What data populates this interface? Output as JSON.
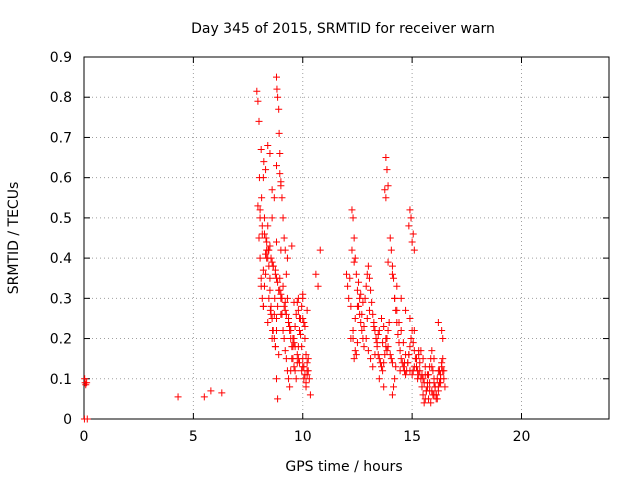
{
  "chart_data": {
    "type": "scatter",
    "title": "Day 345 of 2015, SRMTID for receiver warn",
    "xlabel": "GPS time / hours",
    "ylabel": "SRMTID / TECUs",
    "xlim": [
      0,
      24
    ],
    "ylim": [
      0,
      0.9
    ],
    "xticks": [
      0,
      5,
      10,
      15,
      20
    ],
    "yticks": [
      0,
      0.1,
      0.2,
      0.3,
      0.4,
      0.5,
      0.6,
      0.7,
      0.8,
      0.9
    ],
    "xtick_labels": [
      "0",
      "5",
      "10",
      "15",
      "20"
    ],
    "ytick_labels": [
      "0",
      "0.1",
      "0.2",
      "0.3",
      "0.4",
      "0.5",
      "0.6",
      "0.7",
      "0.8",
      "0.9"
    ],
    "grid": true,
    "marker": "+",
    "series": [
      {
        "name": "SRMTID",
        "color": "#ff0000",
        "x": [
          0.02,
          0.03,
          0.05,
          0.08,
          0.12,
          0.15,
          4.3,
          5.5,
          5.8,
          6.3,
          7.9,
          7.95,
          8.0,
          8.02,
          8.05,
          8.1,
          8.12,
          8.15,
          8.2,
          8.22,
          8.25,
          8.3,
          8.32,
          8.35,
          8.4,
          8.42,
          8.45,
          8.5,
          8.52,
          8.55,
          8.6,
          8.62,
          8.65,
          8.7,
          8.72,
          8.75,
          8.8,
          8.82,
          8.85,
          8.9,
          8.92,
          8.95,
          9.0,
          9.05,
          9.1,
          9.15,
          9.2,
          9.25,
          9.3,
          9.35,
          9.4,
          9.45,
          9.5,
          9.55,
          9.6,
          9.65,
          9.7,
          9.75,
          9.8,
          9.85,
          9.9,
          9.95,
          10.0,
          10.05,
          10.1,
          10.15,
          10.2,
          10.25,
          10.3,
          10.35,
          8.0,
          8.05,
          8.1,
          8.15,
          8.2,
          8.25,
          8.3,
          8.35,
          8.4,
          8.45,
          8.5,
          8.55,
          8.6,
          8.65,
          8.7,
          8.75,
          8.8,
          8.85,
          8.9,
          8.95,
          9.0,
          9.05,
          9.1,
          9.15,
          9.2,
          9.25,
          9.3,
          9.35,
          9.4,
          9.45,
          9.5,
          9.55,
          9.6,
          9.65,
          9.7,
          9.75,
          9.8,
          9.85,
          9.9,
          9.95,
          10.0,
          10.05,
          10.1,
          10.15,
          10.2,
          10.25,
          8.8,
          8.85,
          8.9,
          8.75,
          8.8,
          8.95,
          9.0,
          8.6,
          8.7,
          8.4,
          8.5,
          7.95,
          8.05,
          8.15,
          8.25,
          8.35,
          8.45,
          8.55,
          8.65,
          8.75,
          8.85,
          8.95,
          9.05,
          9.15,
          9.25,
          9.35,
          9.45,
          9.55,
          9.65,
          9.75,
          9.85,
          9.95,
          10.05,
          10.15,
          8.1,
          8.2,
          8.3,
          8.5,
          8.6,
          8.8,
          9.0,
          9.2,
          9.4,
          9.6,
          9.8,
          10.0,
          10.2,
          8.2,
          8.4,
          8.6,
          8.8,
          9.0,
          9.6,
          9.8,
          10.0,
          10.1,
          8.8,
          9.0,
          9.3,
          9.5,
          10.0,
          10.2,
          9.2,
          9.1,
          10.6,
          10.7,
          10.8,
          12.0,
          12.05,
          12.1,
          12.15,
          12.2,
          12.25,
          12.3,
          12.35,
          12.4,
          12.45,
          12.5,
          12.55,
          12.6,
          12.65,
          12.7,
          12.75,
          12.8,
          12.85,
          12.9,
          12.95,
          13.0,
          13.05,
          13.1,
          13.15,
          13.2,
          13.25,
          13.3,
          13.35,
          13.4,
          13.45,
          13.5,
          13.55,
          13.6,
          13.65,
          13.7,
          13.75,
          13.8,
          13.85,
          13.9,
          13.95,
          14.0,
          14.05,
          14.1,
          14.15,
          14.2,
          14.25,
          14.3,
          14.35,
          14.4,
          14.45,
          14.5,
          14.55,
          14.6,
          14.65,
          14.7,
          14.75,
          14.8,
          14.85,
          14.9,
          14.95,
          15.0,
          15.05,
          15.1,
          15.15,
          15.2,
          15.25,
          15.3,
          12.2,
          12.3,
          12.4,
          12.5,
          12.6,
          12.7,
          12.8,
          12.9,
          13.0,
          13.1,
          13.2,
          13.3,
          13.4,
          13.5,
          13.6,
          13.7,
          13.8,
          13.9,
          14.0,
          14.1,
          14.2,
          14.3,
          14.4,
          14.5,
          14.6,
          14.7,
          14.8,
          14.9,
          15.0,
          15.1,
          15.2,
          15.3,
          13.8,
          13.85,
          13.9,
          13.75,
          13.8,
          14.1,
          14.2,
          14.15,
          14.9,
          14.95,
          15.0,
          15.1,
          14.85,
          15.05,
          12.3,
          12.4,
          12.35,
          12.5,
          12.45,
          12.25,
          12.35,
          12.55,
          12.65,
          12.75,
          12.95,
          13.05,
          13.25,
          13.45,
          13.65,
          13.85,
          14.05,
          14.25,
          14.45,
          14.65,
          14.85,
          15.05,
          15.25,
          13.9,
          14.1,
          14.3,
          14.5,
          14.7,
          14.9,
          15.1,
          13.5,
          13.7,
          15.3,
          15.35,
          15.4,
          15.45,
          15.5,
          15.55,
          15.6,
          15.65,
          15.7,
          15.75,
          15.8,
          15.85,
          15.9,
          15.95,
          16.0,
          16.05,
          16.1,
          16.15,
          16.2,
          16.25,
          16.3,
          16.35,
          16.4,
          16.45,
          16.5,
          15.35,
          15.45,
          15.55,
          15.65,
          15.75,
          15.85,
          15.95,
          16.05,
          16.15,
          16.25,
          16.35,
          16.45,
          15.4,
          15.5,
          15.6,
          15.7,
          15.8,
          15.9,
          16.0,
          16.1,
          16.2,
          16.3,
          16.4,
          15.5,
          15.7,
          15.9,
          16.1,
          16.3,
          15.6,
          15.8,
          16.0,
          16.2,
          16.4,
          16.2,
          16.35,
          16.0
        ],
        "y": [
          0.0,
          0.1,
          0.09,
          0.085,
          0.09,
          0.0,
          0.055,
          0.055,
          0.07,
          0.065,
          0.815,
          0.79,
          0.74,
          0.6,
          0.52,
          0.67,
          0.55,
          0.46,
          0.6,
          0.64,
          0.5,
          0.62,
          0.45,
          0.4,
          0.48,
          0.42,
          0.3,
          0.35,
          0.27,
          0.26,
          0.5,
          0.22,
          0.38,
          0.26,
          0.3,
          0.37,
          0.85,
          0.82,
          0.8,
          0.77,
          0.71,
          0.66,
          0.58,
          0.55,
          0.5,
          0.45,
          0.42,
          0.36,
          0.3,
          0.25,
          0.22,
          0.2,
          0.18,
          0.15,
          0.13,
          0.12,
          0.1,
          0.14,
          0.18,
          0.22,
          0.25,
          0.28,
          0.3,
          0.24,
          0.2,
          0.16,
          0.14,
          0.12,
          0.1,
          0.06,
          0.45,
          0.4,
          0.35,
          0.3,
          0.28,
          0.33,
          0.36,
          0.42,
          0.4,
          0.38,
          0.32,
          0.28,
          0.25,
          0.22,
          0.2,
          0.18,
          0.25,
          0.28,
          0.32,
          0.35,
          0.3,
          0.26,
          0.22,
          0.2,
          0.17,
          0.15,
          0.12,
          0.1,
          0.08,
          0.12,
          0.15,
          0.18,
          0.2,
          0.23,
          0.26,
          0.29,
          0.3,
          0.25,
          0.21,
          0.18,
          0.15,
          0.13,
          0.11,
          0.09,
          0.12,
          0.15,
          0.1,
          0.05,
          0.16,
          0.18,
          0.63,
          0.61,
          0.59,
          0.57,
          0.55,
          0.68,
          0.66,
          0.53,
          0.5,
          0.48,
          0.46,
          0.44,
          0.42,
          0.4,
          0.38,
          0.36,
          0.34,
          0.32,
          0.3,
          0.28,
          0.26,
          0.24,
          0.22,
          0.2,
          0.18,
          0.16,
          0.14,
          0.12,
          0.1,
          0.08,
          0.33,
          0.37,
          0.41,
          0.43,
          0.39,
          0.35,
          0.31,
          0.27,
          0.23,
          0.19,
          0.15,
          0.13,
          0.11,
          0.28,
          0.24,
          0.2,
          0.22,
          0.26,
          0.29,
          0.27,
          0.25,
          0.23,
          0.44,
          0.42,
          0.4,
          0.43,
          0.31,
          0.27,
          0.29,
          0.33,
          0.36,
          0.33,
          0.42,
          0.36,
          0.33,
          0.3,
          0.35,
          0.28,
          0.52,
          0.5,
          0.45,
          0.4,
          0.36,
          0.32,
          0.28,
          0.26,
          0.24,
          0.22,
          0.2,
          0.18,
          0.3,
          0.33,
          0.36,
          0.38,
          0.35,
          0.32,
          0.29,
          0.26,
          0.24,
          0.22,
          0.2,
          0.18,
          0.16,
          0.15,
          0.14,
          0.13,
          0.12,
          0.14,
          0.16,
          0.18,
          0.2,
          0.22,
          0.24,
          0.45,
          0.42,
          0.38,
          0.35,
          0.3,
          0.27,
          0.24,
          0.21,
          0.19,
          0.17,
          0.15,
          0.14,
          0.13,
          0.12,
          0.11,
          0.12,
          0.14,
          0.16,
          0.18,
          0.2,
          0.22,
          0.19,
          0.17,
          0.15,
          0.13,
          0.12,
          0.11,
          0.2,
          0.22,
          0.25,
          0.28,
          0.3,
          0.26,
          0.23,
          0.2,
          0.17,
          0.15,
          0.13,
          0.16,
          0.19,
          0.22,
          0.25,
          0.23,
          0.2,
          0.18,
          0.16,
          0.14,
          0.3,
          0.27,
          0.24,
          0.22,
          0.19,
          0.16,
          0.14,
          0.12,
          0.11,
          0.13,
          0.15,
          0.17,
          0.65,
          0.62,
          0.58,
          0.57,
          0.55,
          0.06,
          0.1,
          0.08,
          0.52,
          0.5,
          0.44,
          0.42,
          0.48,
          0.46,
          0.2,
          0.17,
          0.15,
          0.19,
          0.16,
          0.42,
          0.39,
          0.34,
          0.31,
          0.29,
          0.25,
          0.27,
          0.23,
          0.21,
          0.19,
          0.17,
          0.15,
          0.13,
          0.12,
          0.14,
          0.16,
          0.12,
          0.1,
          0.39,
          0.36,
          0.33,
          0.3,
          0.27,
          0.25,
          0.22,
          0.1,
          0.08,
          0.16,
          0.12,
          0.1,
          0.08,
          0.06,
          0.04,
          0.05,
          0.07,
          0.09,
          0.11,
          0.13,
          0.15,
          0.17,
          0.12,
          0.1,
          0.08,
          0.06,
          0.05,
          0.07,
          0.09,
          0.11,
          0.13,
          0.15,
          0.1,
          0.08,
          0.14,
          0.11,
          0.09,
          0.07,
          0.05,
          0.04,
          0.06,
          0.08,
          0.1,
          0.12,
          0.14,
          0.12,
          0.17,
          0.15,
          0.13,
          0.11,
          0.09,
          0.07,
          0.06,
          0.05,
          0.08,
          0.1,
          0.12,
          0.1,
          0.08,
          0.13,
          0.06,
          0.09,
          0.11,
          0.07,
          0.09,
          0.12,
          0.2,
          0.24,
          0.22,
          0.15
        ]
      }
    ]
  }
}
